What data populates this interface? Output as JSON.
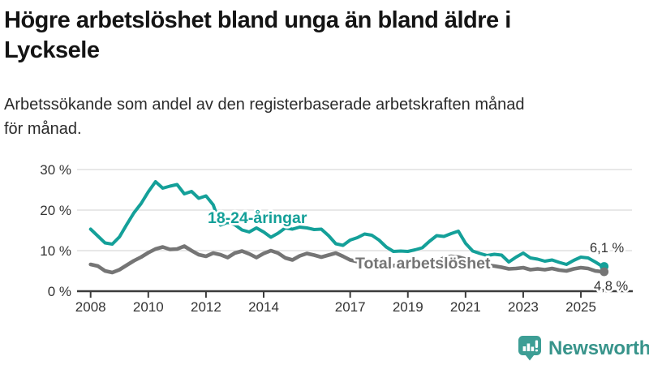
{
  "header": {
    "title_lines": [
      "Högre arbetslöshet bland unga än bland äldre i",
      "Lycksele"
    ],
    "subtitle_lines": [
      "Arbetssökande som andel av den registerbaserade arbetskraften månad",
      "för månad."
    ]
  },
  "chart_data": {
    "type": "line",
    "title": "Högre arbetslöshet bland unga än bland äldre i Lycksele",
    "subtitle": "Arbetssökande som andel av den registerbaserade arbetskraften månad för månad.",
    "xlabel": "",
    "ylabel": "",
    "unit": "%",
    "grid": true,
    "legend_position": "inline-labels",
    "xlim": [
      2007.6,
      2026.3
    ],
    "ylim": [
      0,
      32
    ],
    "x_ticks": [
      2008,
      2010,
      2012,
      2014,
      2017,
      2019,
      2021,
      2023,
      2025
    ],
    "y_ticks": [
      {
        "value": 0,
        "label": "0 %"
      },
      {
        "value": 10,
        "label": "10 %"
      },
      {
        "value": 20,
        "label": "20 %"
      },
      {
        "value": 30,
        "label": "30 %"
      }
    ],
    "x": [
      2008.0,
      2008.25,
      2008.5,
      2008.75,
      2009.0,
      2009.25,
      2009.5,
      2009.75,
      2010.0,
      2010.25,
      2010.5,
      2010.75,
      2011.0,
      2011.25,
      2011.5,
      2011.75,
      2012.0,
      2012.25,
      2012.5,
      2012.75,
      2013.0,
      2013.25,
      2013.5,
      2013.75,
      2014.0,
      2014.25,
      2014.5,
      2014.75,
      2015.0,
      2015.25,
      2015.5,
      2015.75,
      2016.0,
      2016.25,
      2016.5,
      2016.75,
      2017.0,
      2017.25,
      2017.5,
      2017.75,
      2018.0,
      2018.25,
      2018.5,
      2018.75,
      2019.0,
      2019.25,
      2019.5,
      2019.75,
      2020.0,
      2020.25,
      2020.5,
      2020.75,
      2021.0,
      2021.25,
      2021.5,
      2021.75,
      2022.0,
      2022.25,
      2022.5,
      2022.75,
      2023.0,
      2023.25,
      2023.5,
      2023.75,
      2024.0,
      2024.25,
      2024.5,
      2024.75,
      2025.0,
      2025.25,
      2025.5,
      2025.75
    ],
    "series": [
      {
        "name": "18-24-åringar",
        "label_text": "18-24-åringar",
        "end_label": "6,1 %",
        "end_value": 6.1,
        "color": "#14a099",
        "values": [
          15.3,
          13.6,
          11.9,
          11.6,
          13.4,
          16.4,
          19.3,
          21.6,
          24.5,
          27.0,
          25.4,
          25.9,
          26.3,
          24.0,
          24.6,
          22.9,
          23.5,
          21.3,
          16.3,
          17.0,
          16.4,
          15.1,
          14.6,
          15.6,
          14.6,
          13.3,
          14.3,
          15.6,
          15.3,
          15.8,
          15.6,
          15.2,
          15.3,
          13.7,
          11.7,
          11.3,
          12.6,
          13.2,
          14.1,
          13.8,
          12.6,
          10.9,
          9.8,
          9.9,
          9.8,
          10.2,
          10.7,
          12.3,
          13.7,
          13.5,
          14.2,
          14.8,
          11.8,
          9.9,
          9.3,
          8.8,
          9.1,
          8.9,
          7.2,
          8.4,
          9.4,
          8.2,
          7.9,
          7.4,
          7.7,
          7.1,
          6.6,
          7.6,
          8.4,
          8.2,
          7.2,
          6.1
        ]
      },
      {
        "name": "Total arbetslöshet",
        "label_text": "Total arbetslöshet",
        "end_label": "4,8 %",
        "end_value": 4.8,
        "color": "#757575",
        "values": [
          6.6,
          6.2,
          5.0,
          4.6,
          5.3,
          6.4,
          7.5,
          8.4,
          9.5,
          10.4,
          10.9,
          10.3,
          10.4,
          11.1,
          10.0,
          9.0,
          8.6,
          9.4,
          9.0,
          8.3,
          9.4,
          9.9,
          9.2,
          8.3,
          9.3,
          10.0,
          9.4,
          8.2,
          7.7,
          8.7,
          9.3,
          8.9,
          8.4,
          8.9,
          9.4,
          8.6,
          7.7,
          7.3,
          7.0,
          7.2,
          6.8,
          6.5,
          6.3,
          6.4,
          6.2,
          6.3,
          6.5,
          6.8,
          7.3,
          8.2,
          8.6,
          8.4,
          7.9,
          7.3,
          6.8,
          6.4,
          6.2,
          5.9,
          5.5,
          5.6,
          5.8,
          5.3,
          5.5,
          5.3,
          5.6,
          5.2,
          5.0,
          5.5,
          5.8,
          5.6,
          5.0,
          4.8
        ]
      }
    ]
  },
  "footer": {
    "brand": "Newsworthy",
    "logo_icon": "bar-chart-speech-bubble",
    "brand_color": "#38948b",
    "icon_color": "#3d9e95"
  },
  "colors": {
    "accent_teal": "#14a099",
    "line_gray": "#757575",
    "grid": "#d9d9d9",
    "axis": "#3c3c3c",
    "tick_text": "#333333"
  }
}
